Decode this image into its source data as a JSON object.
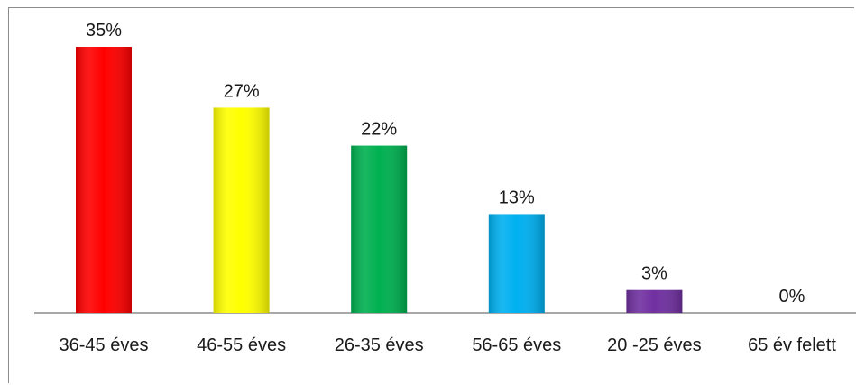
{
  "chart_data": {
    "type": "bar",
    "title": "",
    "xlabel": "",
    "ylabel": "",
    "ylim": [
      0,
      36
    ],
    "grid": false,
    "legend": "none",
    "categories": [
      "36-45 éves",
      "46-55 éves",
      "26-35 éves",
      "56-65 éves",
      "20 -25 éves",
      "65 év felett"
    ],
    "values": [
      35,
      27,
      22,
      13,
      3,
      0
    ],
    "value_labels": [
      "35%",
      "27%",
      "22%",
      "13%",
      "3%",
      "0%"
    ],
    "colors": [
      "#ff0000",
      "#ffff00",
      "#00b050",
      "#00b0f0",
      "#7030a0",
      "#7f7f7f"
    ]
  }
}
